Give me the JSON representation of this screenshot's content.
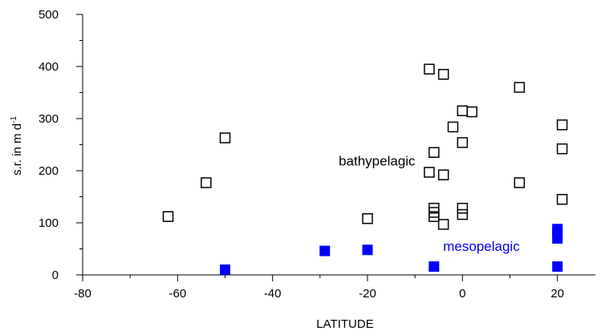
{
  "chart_data": {
    "type": "scatter",
    "xlabel": "LATITUDE",
    "ylabel": {
      "main": "s.r. in m d",
      "superscript": "-1"
    },
    "xlim": [
      -80,
      28
    ],
    "ylim": [
      0,
      500
    ],
    "x_ticks": [
      -80,
      -60,
      -40,
      -20,
      0,
      20
    ],
    "y_ticks": [
      0,
      100,
      200,
      300,
      400,
      500
    ],
    "grid": false,
    "series": [
      {
        "marker": "open-square",
        "color": "#000000",
        "points": [
          {
            "x": -62,
            "y": 112
          },
          {
            "x": -54,
            "y": 177
          },
          {
            "x": -50,
            "y": 263
          },
          {
            "x": -20,
            "y": 108
          },
          {
            "x": -7,
            "y": 395
          },
          {
            "x": -7,
            "y": 197
          },
          {
            "x": -6,
            "y": 235
          },
          {
            "x": -6,
            "y": 128
          },
          {
            "x": -6,
            "y": 120
          },
          {
            "x": -6,
            "y": 112
          },
          {
            "x": -4,
            "y": 385
          },
          {
            "x": -4,
            "y": 192
          },
          {
            "x": -4,
            "y": 97
          },
          {
            "x": -2,
            "y": 284
          },
          {
            "x": 0,
            "y": 315
          },
          {
            "x": 0,
            "y": 254
          },
          {
            "x": 0,
            "y": 128
          },
          {
            "x": 0,
            "y": 116
          },
          {
            "x": 2,
            "y": 313
          },
          {
            "x": 12,
            "y": 360
          },
          {
            "x": 12,
            "y": 177
          },
          {
            "x": 21,
            "y": 288
          },
          {
            "x": 21,
            "y": 242
          },
          {
            "x": 21,
            "y": 145
          }
        ]
      },
      {
        "marker": "filled-square",
        "color": "#0000ff",
        "points": [
          {
            "x": -50,
            "y": 10
          },
          {
            "x": -29,
            "y": 46
          },
          {
            "x": -20,
            "y": 48
          },
          {
            "x": -6,
            "y": 16
          },
          {
            "x": 20,
            "y": 88
          },
          {
            "x": 20,
            "y": 80
          },
          {
            "x": 20,
            "y": 70
          },
          {
            "x": 20,
            "y": 16
          }
        ]
      }
    ],
    "annotations": [
      {
        "text": "bathypelagic",
        "x": -18,
        "y": 210,
        "color": "#000000"
      },
      {
        "text": "mesopelagic",
        "x": 4,
        "y": 46,
        "color": "#0000ff"
      }
    ]
  }
}
